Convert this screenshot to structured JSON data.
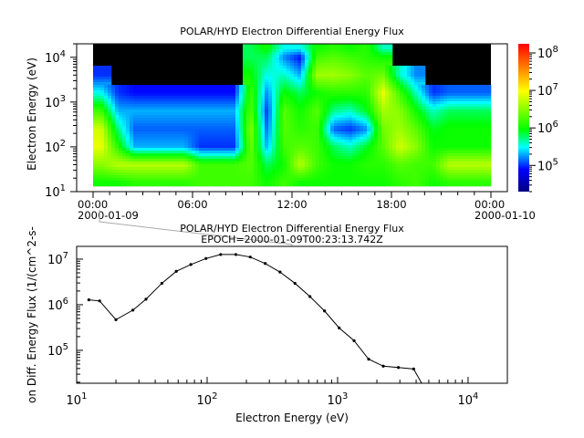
{
  "chart_data": [
    {
      "type": "heatmap",
      "title": "POLAR/HYD  Electron Differential Energy Flux",
      "ylabel": "Electron Energy (eV)",
      "y_scale": "log",
      "ylim": [
        10,
        20000
      ],
      "y_ticks": [
        {
          "base": "10",
          "exp": "1"
        },
        {
          "base": "10",
          "exp": "2"
        },
        {
          "base": "10",
          "exp": "3"
        },
        {
          "base": "10",
          "exp": "4"
        }
      ],
      "x_ticks": [
        {
          "time": "00:00",
          "date": "2000-01-09"
        },
        {
          "time": "06:00",
          "date": ""
        },
        {
          "time": "12:00",
          "date": ""
        },
        {
          "time": "18:00",
          "date": ""
        },
        {
          "time": "00:00",
          "date": "2000-01-10"
        }
      ],
      "xlim_hours": [
        0,
        24
      ],
      "hours": [
        0,
        1,
        2,
        3,
        4,
        5,
        6,
        7,
        8,
        9,
        10,
        11,
        12,
        13,
        14,
        15,
        16,
        17,
        18,
        19,
        20,
        21,
        22,
        23
      ],
      "energies_eV": [
        16,
        40,
        100,
        250,
        630,
        1600,
        4000,
        10000,
        16000
      ],
      "flux": [
        [
          1000000.0,
          3200000.0,
          8000000.0,
          6300000.0,
          1600000.0,
          320000.0,
          100000.0,
          null,
          null
        ],
        [
          1000000.0,
          5000000.0,
          1300000.0,
          500000.0,
          200000.0,
          100000.0,
          null,
          null,
          null
        ],
        [
          1300000.0,
          5000000.0,
          200000.0,
          130000.0,
          200000.0,
          80000.0,
          null,
          null,
          null
        ],
        [
          1300000.0,
          5000000.0,
          200000.0,
          130000.0,
          200000.0,
          80000.0,
          null,
          null,
          null
        ],
        [
          1300000.0,
          5000000.0,
          200000.0,
          130000.0,
          200000.0,
          80000.0,
          null,
          null,
          null
        ],
        [
          1300000.0,
          5000000.0,
          200000.0,
          130000.0,
          200000.0,
          80000.0,
          null,
          null,
          null
        ],
        [
          1600000.0,
          1600000.0,
          100000.0,
          130000.0,
          200000.0,
          80000.0,
          null,
          null,
          null
        ],
        [
          1600000.0,
          1600000.0,
          100000.0,
          130000.0,
          200000.0,
          80000.0,
          null,
          null,
          null
        ],
        [
          1600000.0,
          1600000.0,
          100000.0,
          130000.0,
          200000.0,
          80000.0,
          null,
          null,
          null
        ],
        [
          1600000.0,
          2000000.0,
          2500000.0,
          3200000.0,
          2000000.0,
          1600000.0,
          1000000.0,
          630000.0,
          630000.0
        ],
        [
          1000000.0,
          630000.0,
          200000.0,
          130000.0,
          100000.0,
          160000.0,
          320000.0,
          630000.0,
          1000000.0
        ],
        [
          1600000.0,
          1000000.0,
          1600000.0,
          2000000.0,
          2000000.0,
          1000000.0,
          400000.0,
          160000.0,
          320000.0
        ],
        [
          1000000.0,
          5000000.0,
          2000000.0,
          1300000.0,
          1000000.0,
          630000.0,
          200000.0,
          80000.0,
          320000.0
        ],
        [
          1000000.0,
          1600000.0,
          1600000.0,
          1600000.0,
          2000000.0,
          1000000.0,
          4000000.0,
          1600000.0,
          1000000.0
        ],
        [
          1000000.0,
          1000000.0,
          630000.0,
          130000.0,
          500000.0,
          1300000.0,
          4000000.0,
          2000000.0,
          1300000.0
        ],
        [
          1000000.0,
          1000000.0,
          400000.0,
          100000.0,
          400000.0,
          1300000.0,
          3200000.0,
          1600000.0,
          1000000.0
        ],
        [
          1000000.0,
          1300000.0,
          800000.0,
          160000.0,
          800000.0,
          1300000.0,
          2000000.0,
          1300000.0,
          1300000.0
        ],
        [
          1000000.0,
          1300000.0,
          2000000.0,
          2500000.0,
          4000000.0,
          8000000.0,
          2500000.0,
          1000000.0,
          400000.0
        ],
        [
          1300000.0,
          2000000.0,
          6300000.0,
          4000000.0,
          3200000.0,
          1600000.0,
          400000.0,
          null,
          null
        ],
        [
          1600000.0,
          1600000.0,
          3200000.0,
          2000000.0,
          1000000.0,
          400000.0,
          160000.0,
          null,
          null
        ],
        [
          1000000.0,
          1600000.0,
          1000000.0,
          800000.0,
          400000.0,
          100000.0,
          null,
          null,
          null
        ],
        [
          1300000.0,
          5000000.0,
          1000000.0,
          1000000.0,
          630000.0,
          130000.0,
          null,
          null,
          null
        ],
        [
          1300000.0,
          5000000.0,
          1000000.0,
          1000000.0,
          630000.0,
          130000.0,
          null,
          null,
          null
        ],
        [
          1300000.0,
          5000000.0,
          1000000.0,
          1000000.0,
          630000.0,
          130000.0,
          null,
          null,
          null
        ]
      ],
      "no_data_color": "#000000",
      "colorbar": {
        "scale": "log",
        "range": [
          20000,
          175000000
        ],
        "ticks": [
          {
            "base": "10",
            "exp": "5"
          },
          {
            "base": "10",
            "exp": "6"
          },
          {
            "base": "10",
            "exp": "7"
          },
          {
            "base": "10",
            "exp": "8"
          }
        ],
        "colormap": [
          "#00007f",
          "#0000ff",
          "#00ffff",
          "#00ff00",
          "#ffff00",
          "#ff8000",
          "#ff0000"
        ]
      },
      "grid": false
    },
    {
      "type": "line",
      "title": "POLAR/HYD  Electron Differential Energy Flux",
      "subtitle": "EPOCH=2000-01-09T00:23:13.742Z",
      "xlabel": "Electron Energy (eV)",
      "ylabel": "on Diff. Energy Flux (1/(cm^2-s-",
      "x_scale": "log",
      "y_scale": "log",
      "xlim": [
        10,
        20000
      ],
      "ylim": [
        19000,
        19000000
      ],
      "x_ticks": [
        {
          "base": "10",
          "exp": "1"
        },
        {
          "base": "10",
          "exp": "2"
        },
        {
          "base": "10",
          "exp": "3"
        },
        {
          "base": "10",
          "exp": "4"
        }
      ],
      "y_ticks": [
        {
          "base": "10",
          "exp": "5"
        },
        {
          "base": "10",
          "exp": "6"
        },
        {
          "base": "10",
          "exp": "7"
        }
      ],
      "x": [
        12.4,
        15,
        20,
        27,
        34,
        45,
        58,
        75,
        98,
        127,
        166,
        214,
        279,
        362,
        471,
        614,
        794,
        1028,
        1337,
        1730,
        2239,
        2926,
        3828,
        5000
      ],
      "y": [
        1280000.0,
        1210000.0,
        470000.0,
        760000.0,
        1320000.0,
        2950000.0,
        5400000.0,
        7600000.0,
        10300000.0,
        12600000.0,
        12600000.0,
        11100000.0,
        8000000.0,
        5200000.0,
        2950000.0,
        1510000.0,
        730000.0,
        310000.0,
        163000.0,
        64000.0,
        45000.0,
        42000.0,
        39000.0,
        10000.0
      ],
      "line_color": "#000000",
      "marker": "dot",
      "grid": false,
      "epoch_hours": 0.387
    }
  ]
}
